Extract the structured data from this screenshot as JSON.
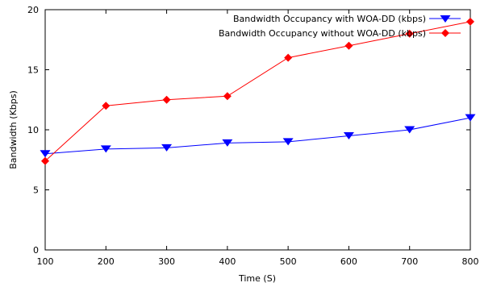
{
  "chart_data": {
    "type": "line",
    "title": "",
    "xlabel": "Time (S)",
    "ylabel": "Bandwidth (Kbps)",
    "xlim": [
      100,
      800
    ],
    "ylim": [
      0,
      20
    ],
    "x_ticks": [
      100,
      200,
      300,
      400,
      500,
      600,
      700,
      800
    ],
    "y_ticks": [
      0,
      5,
      10,
      15,
      20
    ],
    "grid": false,
    "legend_position": "top-right",
    "series": [
      {
        "name": "Bandwidth Occupancy with WOA-DD (kbps)",
        "color": "#0000ff",
        "marker": "triangle-down",
        "x": [
          100,
          200,
          300,
          400,
          500,
          600,
          700,
          800
        ],
        "y": [
          8.0,
          8.4,
          8.5,
          8.9,
          9.0,
          9.5,
          10.0,
          11.0
        ]
      },
      {
        "name": "Bandwidth Occupancy without WOA-DD (kbps)",
        "color": "#ff0000",
        "marker": "diamond",
        "x": [
          100,
          200,
          300,
          400,
          500,
          600,
          700,
          800
        ],
        "y": [
          7.4,
          12.0,
          12.5,
          12.8,
          16.0,
          17.0,
          18.0,
          19.0
        ]
      }
    ]
  }
}
